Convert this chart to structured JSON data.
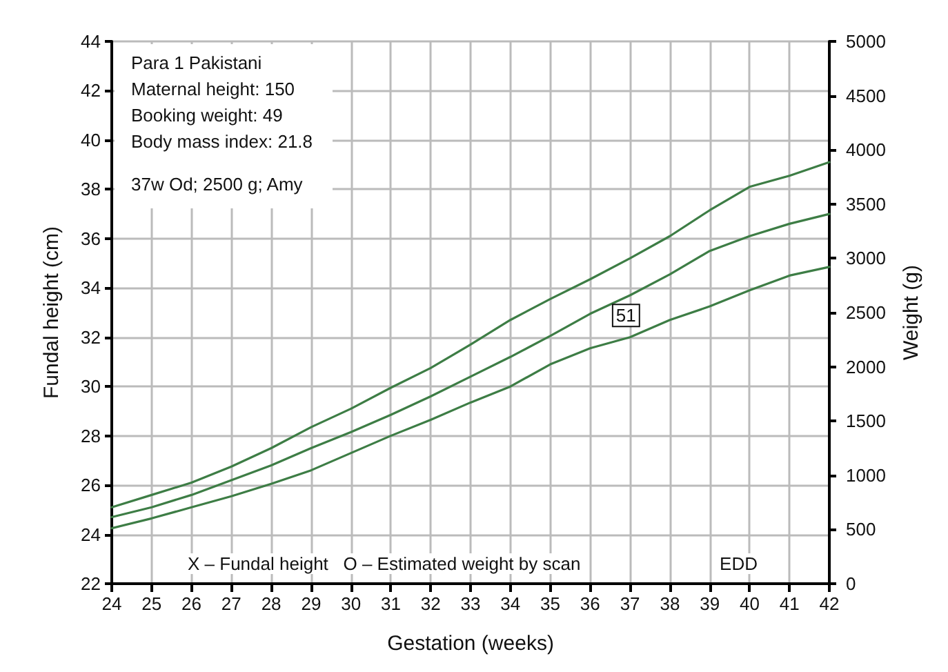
{
  "chart_data": {
    "type": "line",
    "xlabel": "Gestation (weeks)",
    "ylabel": "Fundal height (cm)",
    "y2label": "Weight (g)",
    "x": [
      24,
      25,
      26,
      27,
      28,
      29,
      30,
      31,
      32,
      33,
      34,
      35,
      36,
      37,
      38,
      39,
      40,
      41,
      42
    ],
    "series": [
      {
        "color": "#3d7d45",
        "values": [
          25.1,
          25.6,
          26.1,
          26.75,
          27.5,
          28.35,
          29.1,
          29.95,
          30.75,
          31.7,
          32.7,
          33.55,
          34.35,
          35.2,
          36.1,
          37.15,
          38.1,
          38.55,
          39.1
        ]
      },
      {
        "color": "#3d7d45",
        "values": [
          24.7,
          25.1,
          25.6,
          26.2,
          26.8,
          27.5,
          28.15,
          28.85,
          29.6,
          30.4,
          31.2,
          32.05,
          32.95,
          33.7,
          34.55,
          35.5,
          36.1,
          36.6,
          37.0
        ]
      },
      {
        "color": "#3d7d45",
        "values": [
          24.25,
          24.65,
          25.1,
          25.55,
          26.05,
          26.6,
          27.3,
          28.0,
          28.65,
          29.35,
          30.0,
          30.9,
          31.55,
          32.0,
          32.7,
          33.25,
          33.9,
          34.5,
          34.85
        ]
      }
    ],
    "xlim": [
      24,
      42
    ],
    "xticks": [
      24,
      25,
      26,
      27,
      28,
      29,
      30,
      31,
      32,
      33,
      34,
      35,
      36,
      37,
      38,
      39,
      40,
      41,
      42
    ],
    "ylim": [
      22,
      44
    ],
    "yticks": [
      22,
      24,
      26,
      28,
      30,
      32,
      34,
      36,
      38,
      40,
      42,
      44
    ],
    "y2lim": [
      0,
      5000
    ],
    "y2ticks": [
      0,
      500,
      1000,
      1500,
      2000,
      2500,
      3000,
      3500,
      4000,
      4500,
      5000
    ],
    "grid": true,
    "marker": "none",
    "line_style": "solid",
    "annotations": [
      "Para 1 Pakistani",
      "Maternal height: 150",
      "Booking weight: 49",
      "Body mass index: 21.8",
      "37w Od; 2500 g; Amy",
      {
        "text": "51",
        "x": 36.9,
        "y": 33.3
      },
      "X – Fundal height   O – Estimated weight by scan",
      "EDD"
    ]
  }
}
